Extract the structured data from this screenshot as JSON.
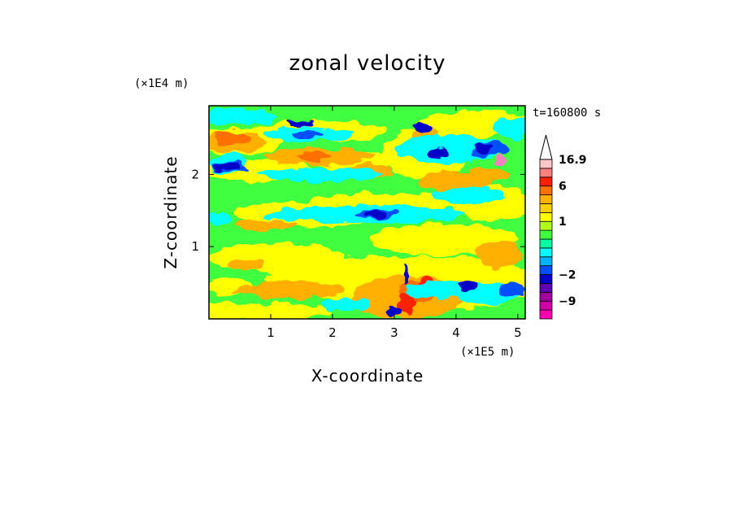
{
  "chart_data": {
    "type": "heatmap",
    "title": "zonal velocity",
    "xlabel": "X-coordinate",
    "ylabel": "Z-coordinate",
    "x_scale_label": "(×1E5 m)",
    "y_scale_label": "(×1E4 m)",
    "time_label": "t=160800 s",
    "xlim": [
      0,
      5.12
    ],
    "ylim": [
      0,
      2.95
    ],
    "x_ticks": [
      1,
      2,
      3,
      4,
      5
    ],
    "y_ticks": [
      1,
      2
    ],
    "colorbar": {
      "levels": [
        -16,
        -13,
        -9,
        -6,
        -4,
        -2,
        -1.5,
        -1,
        -0.5,
        0,
        0.5,
        1,
        1.5,
        2,
        4,
        6,
        9,
        13,
        16.9
      ],
      "labels": [
        {
          "text": "16.9",
          "value": 16.9
        },
        {
          "text": "6",
          "value": 6
        },
        {
          "text": "1",
          "value": 1
        },
        {
          "text": "−2",
          "value": -2
        },
        {
          "text": "−9",
          "value": -9
        }
      ],
      "colors": [
        "#ff00b0",
        "#d000a8",
        "#a000a0",
        "#6000b0",
        "#0000c8",
        "#0050ff",
        "#00b4ff",
        "#00ffff",
        "#00ffa0",
        "#40ff40",
        "#b0ff20",
        "#ffff00",
        "#ffd000",
        "#ffb000",
        "#ff7000",
        "#ff2000",
        "#ff8080",
        "#ffc8c8"
      ],
      "extend": "max"
    }
  }
}
